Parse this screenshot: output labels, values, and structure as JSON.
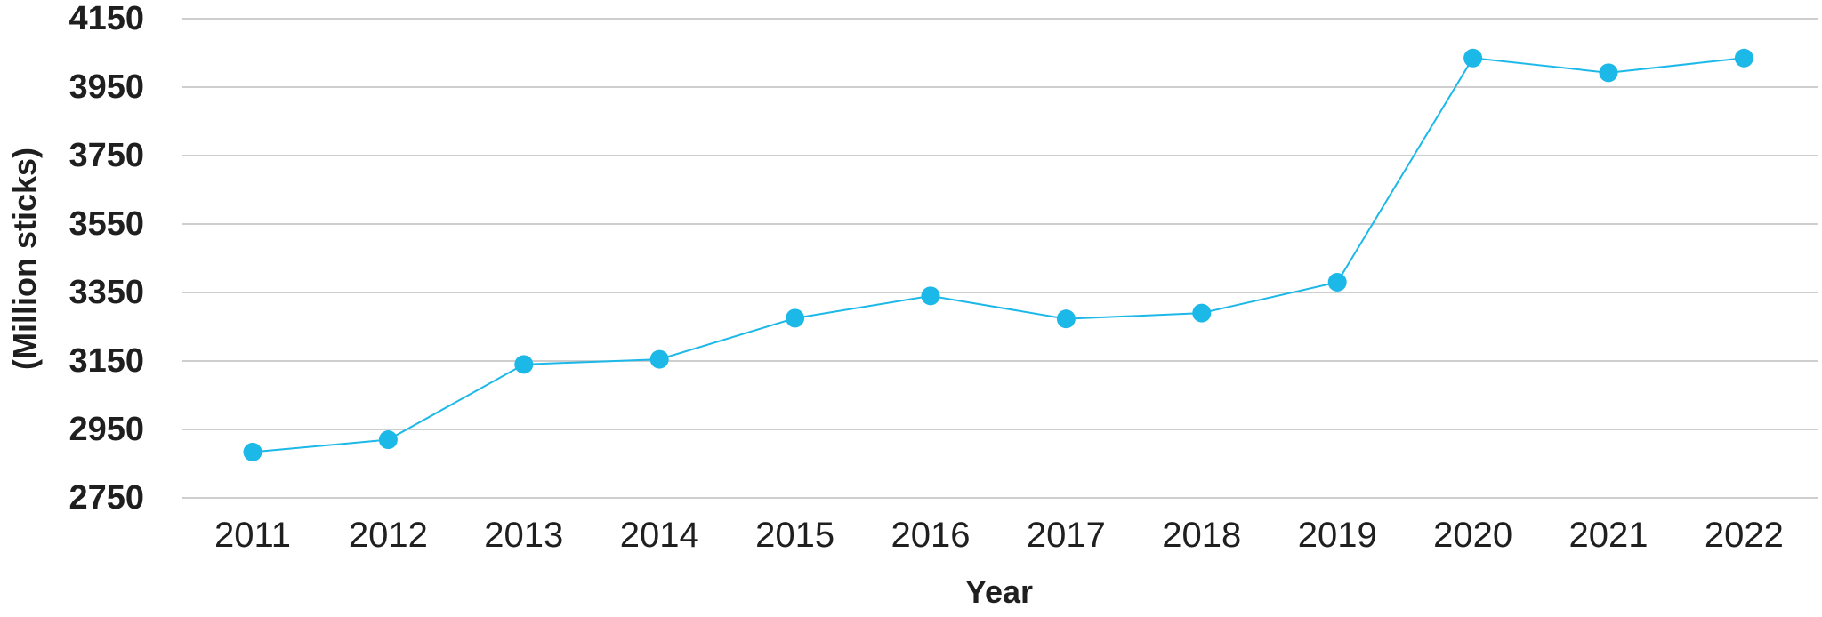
{
  "chart_data": {
    "type": "line",
    "title": "",
    "xlabel": "Year",
    "ylabel": "(Million sticks)",
    "x": [
      "2011",
      "2012",
      "2013",
      "2014",
      "2015",
      "2016",
      "2017",
      "2018",
      "2019",
      "2020",
      "2021",
      "2022"
    ],
    "series": [
      {
        "values": [
          2884,
          2920,
          3140,
          3155,
          3275,
          3340,
          3273,
          3290,
          3380,
          4035,
          3992,
          4035
        ],
        "color": "#1cb8e8"
      }
    ],
    "ylim": [
      2750,
      4150
    ],
    "yticks": [
      "4150",
      "3950",
      "3750",
      "3550",
      "3350",
      "3150",
      "2950",
      "2750"
    ],
    "grid": true,
    "legend": "none",
    "colors": {
      "grid": "#bdbdbd",
      "text": "#1f1f1f",
      "series": "#1cb8e8"
    }
  }
}
